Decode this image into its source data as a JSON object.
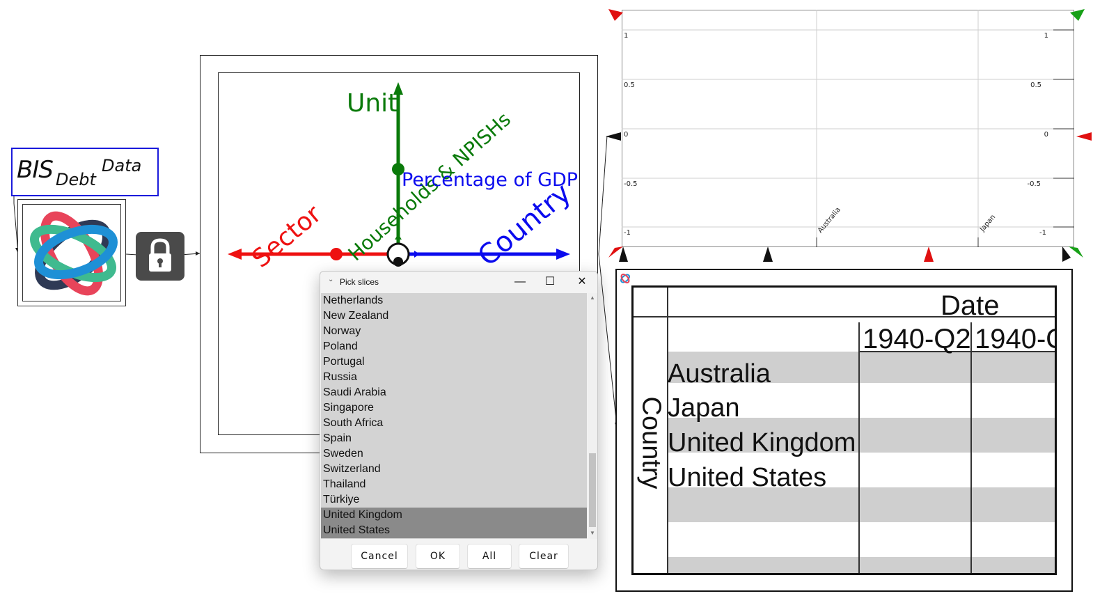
{
  "variable": {
    "name": "BIS",
    "subscript": "Debt",
    "superscript": "Data"
  },
  "pivot": {
    "axes": [
      {
        "label": "Unit",
        "color": "#0a7a0a",
        "value": "Households & NPISHs"
      },
      {
        "label": "Sector",
        "color": "#ee1111",
        "value": ""
      },
      {
        "label": "Country",
        "color": "#0b0bee",
        "value": "Percentage of GDP"
      }
    ],
    "unit_value": "Households & NPISHs",
    "country_value": "Percentage of GDP"
  },
  "plot": {
    "left_ticks": [
      "1",
      "0.5",
      "0",
      "-0.5",
      "-1"
    ],
    "right_ticks": [
      "1",
      "0.5",
      "0",
      "-0.5",
      "-1"
    ],
    "x_labels": [
      "Australia",
      "Japan"
    ]
  },
  "table": {
    "column_header": "Date",
    "row_header": "Country",
    "columns": [
      "1940-Q2",
      "1940-Q"
    ],
    "rows": [
      "Australia",
      "Japan",
      "United Kingdom",
      "United States"
    ]
  },
  "dialog": {
    "title": "Pick slices",
    "items": [
      {
        "label": "Netherlands",
        "selected": false
      },
      {
        "label": "New Zealand",
        "selected": false
      },
      {
        "label": "Norway",
        "selected": false
      },
      {
        "label": "Poland",
        "selected": false
      },
      {
        "label": "Portugal",
        "selected": false
      },
      {
        "label": "Russia",
        "selected": false
      },
      {
        "label": "Saudi Arabia",
        "selected": false
      },
      {
        "label": "Singapore",
        "selected": false
      },
      {
        "label": "South Africa",
        "selected": false
      },
      {
        "label": "Spain",
        "selected": false
      },
      {
        "label": "Sweden",
        "selected": false
      },
      {
        "label": "Switzerland",
        "selected": false
      },
      {
        "label": "Thailand",
        "selected": false
      },
      {
        "label": "Türkiye",
        "selected": false
      },
      {
        "label": "United Kingdom",
        "selected": true
      },
      {
        "label": "United States",
        "selected": true
      }
    ],
    "buttons": {
      "cancel": "Cancel",
      "ok": "OK",
      "all": "All",
      "clear": "Clear"
    },
    "controls": {
      "minimize": "—",
      "maximize": "☐",
      "close": "✕"
    },
    "scroll_up": "▲",
    "scroll_down": "▼"
  },
  "icons": {
    "lock": "lock-icon",
    "logo": "bis-logo"
  }
}
